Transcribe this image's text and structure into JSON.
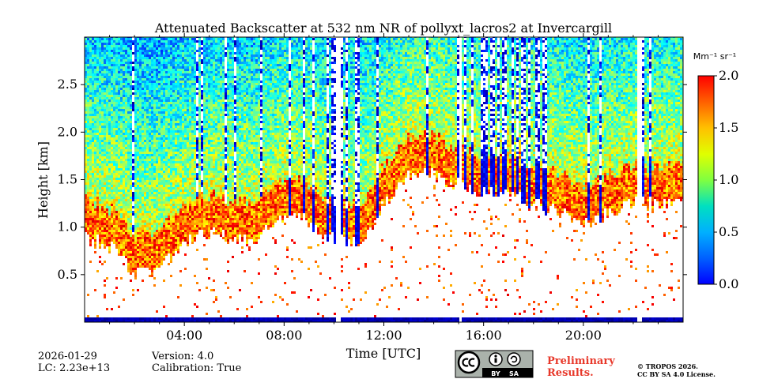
{
  "chart_data": {
    "type": "heatmap",
    "title": "Attenuated Backscatter at 532 nm NR of pollyxt_lacros2 at Invercargill",
    "xlabel": "Time [UTC]",
    "ylabel": "Height [km]",
    "xlim": [
      0,
      24
    ],
    "ylim": [
      0,
      3.0
    ],
    "x_ticks": [
      4,
      8,
      12,
      16,
      20
    ],
    "x_tick_labels": [
      "04:00",
      "08:00",
      "12:00",
      "16:00",
      "20:00"
    ],
    "y_ticks": [
      0.5,
      1.0,
      1.5,
      2.0,
      2.5
    ],
    "y_tick_labels": [
      "0.5",
      "1.0",
      "1.5",
      "2.0",
      "2.5"
    ],
    "colorbar": {
      "label": "Mm⁻¹ sr⁻¹",
      "range": [
        0.0,
        2.0
      ],
      "ticks": [
        0.0,
        0.5,
        1.0,
        1.5,
        2.0
      ],
      "tick_labels": [
        "0.0",
        "0.5",
        "1.0",
        "1.5",
        "2.0"
      ],
      "colormap": "jet"
    },
    "cloud_base_km": [
      [
        0.0,
        0.95
      ],
      [
        1.0,
        0.85
      ],
      [
        2.0,
        0.55
      ],
      [
        3.0,
        0.6
      ],
      [
        4.0,
        0.9
      ],
      [
        5.0,
        1.0
      ],
      [
        6.0,
        0.9
      ],
      [
        7.0,
        0.95
      ],
      [
        8.0,
        1.2
      ],
      [
        9.0,
        1.1
      ],
      [
        10.0,
        0.9
      ],
      [
        11.0,
        0.9
      ],
      [
        12.0,
        1.3
      ],
      [
        13.0,
        1.6
      ],
      [
        14.0,
        1.6
      ],
      [
        15.0,
        1.5
      ],
      [
        16.0,
        1.4
      ],
      [
        17.0,
        1.4
      ],
      [
        18.0,
        1.3
      ],
      [
        19.0,
        1.2
      ],
      [
        20.0,
        1.1
      ],
      [
        21.0,
        1.2
      ],
      [
        22.0,
        1.3
      ],
      [
        23.0,
        1.3
      ],
      [
        24.0,
        1.3
      ]
    ],
    "data_gaps_utc": [
      [
        10.0,
        10.2
      ],
      [
        15.0,
        15.1
      ],
      [
        22.1,
        22.3
      ]
    ]
  },
  "footer": {
    "date": "2026-01-29",
    "lc": "LC: 2.23e+13",
    "version": "Version: 4.0",
    "calibration": "Calibration: True",
    "preliminary_line1": "Preliminary",
    "preliminary_line2": "Results.",
    "copyright_line1": "© TROPOS 2026.",
    "copyright_line2": "CC BY SA 4.0 License.",
    "license_badge": "cc-by-sa-badge",
    "preliminary_color": "#e8392b"
  }
}
